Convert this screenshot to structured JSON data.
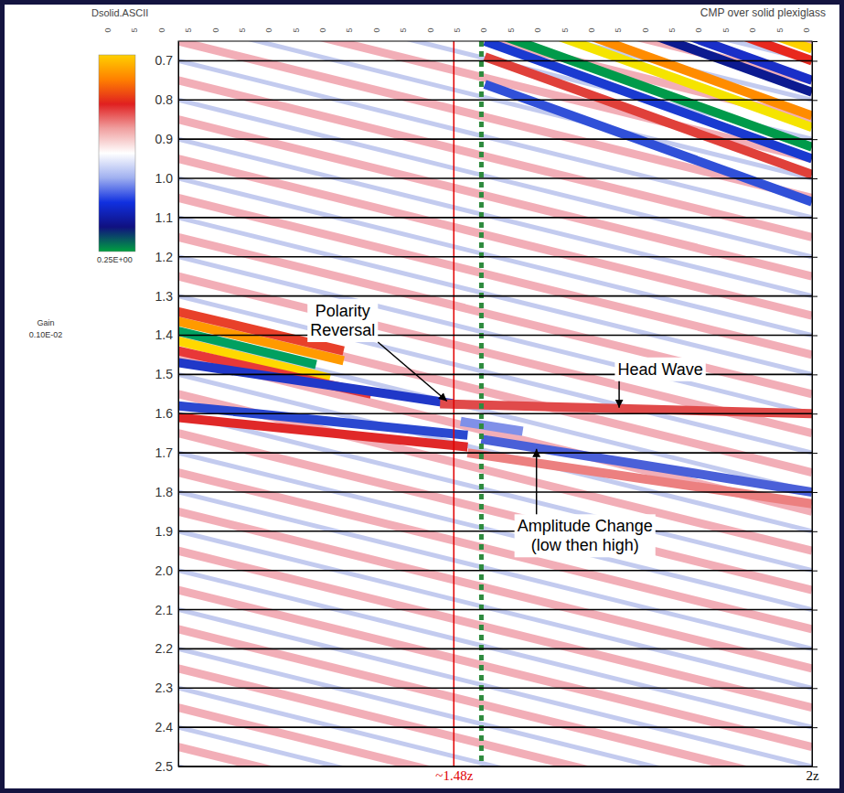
{
  "chart_data": {
    "type": "seismic",
    "title": "Dsolid.ASCII",
    "subtitle": "CMP over solid plexiglass",
    "trace_labels": [
      0,
      5,
      0,
      5,
      0,
      5,
      0,
      5,
      0,
      5,
      0,
      5,
      0,
      5,
      0,
      5,
      0,
      5,
      0,
      5,
      0,
      5,
      0,
      5,
      0,
      5,
      0
    ],
    "colorbar": {
      "colors": [
        "#ffd000",
        "#ff8000",
        "#e02020",
        "#f0a0a0",
        "#ffffff",
        "#a0b0f0",
        "#1030e0",
        "#101080",
        "#00a040"
      ],
      "label": "0.25E+00"
    },
    "gain_label": "Gain",
    "gain": "0.10E-02",
    "xlim": [
      1.08,
      2.0
    ],
    "xticks": [
      {
        "value": 1.48,
        "label": "~1.48z"
      },
      {
        "value": 2,
        "label": "2z"
      }
    ],
    "ylim": [
      0.65,
      2.5
    ],
    "yticks": [
      0.7,
      0.8,
      0.9,
      {
        "value": 1,
        "label": "1.0"
      },
      1.1,
      1.2,
      1.3,
      1.4,
      1.5,
      1.6,
      1.7,
      1.8,
      1.9,
      {
        "value": 2,
        "label": "2.0"
      },
      2.1,
      2.2,
      2.3,
      2.4,
      2.5
    ],
    "grid": true,
    "stripes": [
      {
        "color": "#f0a0aa",
        "x": [
          1.08,
          2.0
        ],
        "y_left": [
          0.25,
          0.35,
          0.45,
          0.55,
          0.65,
          0.75,
          0.85,
          0.95,
          1.05,
          1.15,
          1.25,
          1.35,
          1.45,
          1.55,
          1.65,
          1.75,
          1.85,
          1.95,
          2.05,
          2.15,
          2.25,
          2.35,
          2.45
        ],
        "y_right": [
          0.65,
          0.75,
          0.85,
          0.95,
          1.05,
          1.15,
          1.25,
          1.35,
          1.45,
          1.55,
          1.65,
          1.75,
          1.85,
          1.95,
          2.05,
          2.15,
          2.25,
          2.35,
          2.45,
          2.55,
          2.65,
          2.75,
          2.85
        ]
      },
      {
        "color": "#b8c2ec",
        "x": [
          1.08,
          2.0
        ],
        "y_left": [
          0.3,
          0.4,
          0.5,
          0.6,
          0.7,
          0.8,
          0.9,
          1.0,
          1.1,
          1.2,
          1.3,
          1.4,
          1.5,
          1.6,
          1.7,
          1.8,
          1.9,
          2.0,
          2.1,
          2.2,
          2.3,
          2.4,
          2.5
        ],
        "y_right": [
          0.7,
          0.8,
          0.9,
          1.0,
          1.1,
          1.2,
          1.3,
          1.4,
          1.5,
          1.6,
          1.7,
          1.8,
          1.9,
          2.0,
          2.1,
          2.2,
          2.3,
          2.4,
          2.5,
          2.6,
          2.7,
          2.8,
          2.9
        ]
      }
    ],
    "events": [
      {
        "x": [
          1.525,
          2.0
        ],
        "y": [
          0.37,
          0.67
        ],
        "color": "#ffd200"
      },
      {
        "x": [
          1.525,
          2.0
        ],
        "y": [
          0.4,
          0.7
        ],
        "color": "#e8281e"
      },
      {
        "x": [
          1.525,
          2.0
        ],
        "y": [
          0.45,
          0.75
        ],
        "color": "#1a2fc8"
      },
      {
        "x": [
          1.525,
          2.0
        ],
        "y": [
          0.48,
          0.78
        ],
        "color": "#0c1a90"
      },
      {
        "x": [
          1.525,
          2.0
        ],
        "y": [
          0.54,
          0.84
        ],
        "color": "#ff8c00"
      },
      {
        "x": [
          1.525,
          2.0
        ],
        "y": [
          0.57,
          0.87
        ],
        "color": "#f5e400"
      },
      {
        "x": [
          1.525,
          2.0
        ],
        "y": [
          0.62,
          0.92
        ],
        "color": "#009a4a"
      },
      {
        "x": [
          1.525,
          2.0
        ],
        "y": [
          0.65,
          0.95
        ],
        "color": "#1a3ad0"
      },
      {
        "x": [
          1.525,
          2.0
        ],
        "y": [
          0.69,
          0.99
        ],
        "color": "#e0403a"
      },
      {
        "x": [
          1.525,
          2.0
        ],
        "y": [
          0.76,
          1.06
        ],
        "color": "#3050d8"
      },
      {
        "x": [
          1.08,
          1.32
        ],
        "y": [
          1.34,
          1.44
        ],
        "color": "#e8402a"
      },
      {
        "x": [
          1.08,
          1.32
        ],
        "y": [
          1.365,
          1.465
        ],
        "color": "#ff9a00"
      },
      {
        "x": [
          1.08,
          1.28
        ],
        "y": [
          1.39,
          1.475
        ],
        "color": "#00a060"
      },
      {
        "x": [
          1.08,
          1.3
        ],
        "y": [
          1.415,
          1.51
        ],
        "color": "#ffd800"
      },
      {
        "x": [
          1.08,
          1.36
        ],
        "y": [
          1.44,
          1.55
        ],
        "color": "#e83838"
      },
      {
        "x": [
          1.08,
          1.48
        ],
        "y": [
          1.47,
          1.575
        ],
        "color": "#2038c8"
      },
      {
        "x": [
          1.46,
          2.0
        ],
        "y": [
          1.575,
          1.6
        ],
        "color": "#e04a4a"
      },
      {
        "x": [
          1.08,
          1.5
        ],
        "y": [
          1.58,
          1.655
        ],
        "color": "#2a48d0"
      },
      {
        "x": [
          1.08,
          1.5
        ],
        "y": [
          1.61,
          1.685
        ],
        "color": "#e02828"
      },
      {
        "x": [
          1.49,
          1.58
        ],
        "y": [
          1.62,
          1.645
        ],
        "color": "#8090e8"
      },
      {
        "x": [
          1.52,
          2.0
        ],
        "y": [
          1.665,
          1.8
        ],
        "color": "#4a60d8"
      },
      {
        "x": [
          1.5,
          2.0
        ],
        "y": [
          1.7,
          1.83
        ],
        "color": "#ec8080"
      }
    ],
    "vlines": [
      {
        "x": 1.48,
        "color": "#e00000",
        "line_style": "solid"
      },
      {
        "x": 1.52,
        "color": "#2e8b3e",
        "line_style": "dotted"
      }
    ],
    "annotations": [
      {
        "lines": [
          "Polarity",
          "Reversal"
        ],
        "x": 1.47,
        "y": 1.568
      },
      {
        "lines": [
          "Head Wave"
        ],
        "x": 1.72,
        "y": 1.585
      },
      {
        "lines": [
          "Amplitude Change",
          "(low then high)"
        ],
        "x": 1.6,
        "y": 1.69
      }
    ]
  }
}
